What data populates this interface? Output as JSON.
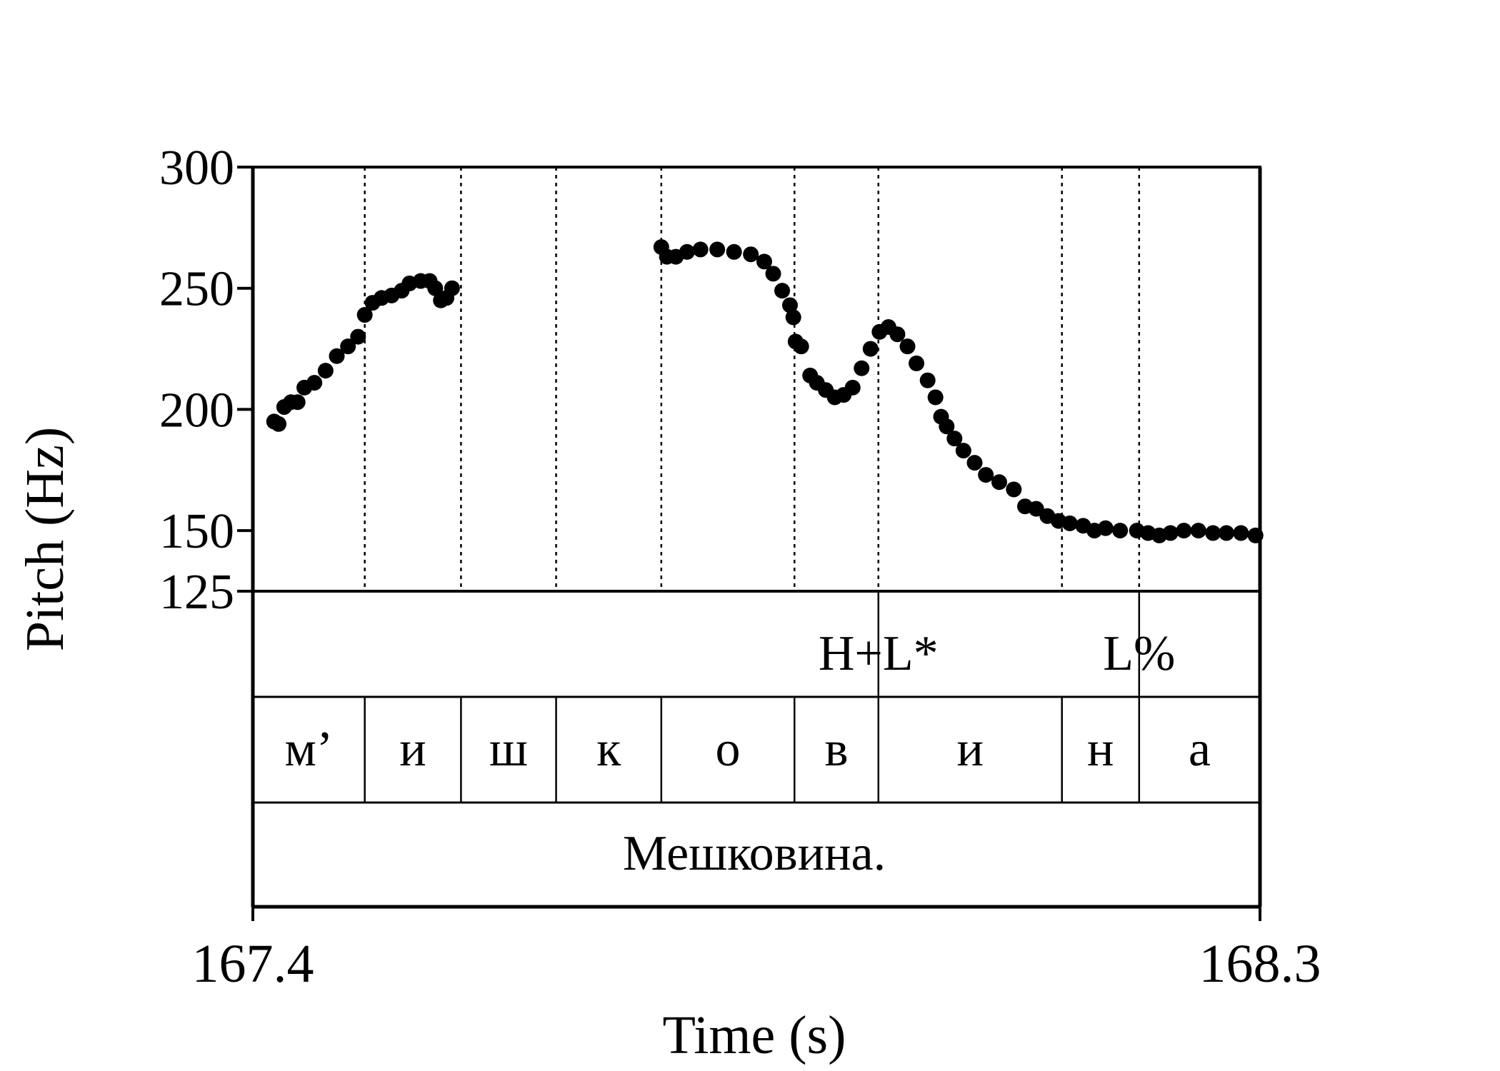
{
  "chart_data": {
    "type": "scatter",
    "title": "",
    "xlabel": "Time (s)",
    "ylabel": "Pitch (Hz)",
    "xlim": [
      167.4,
      168.3
    ],
    "ylim": [
      125,
      300
    ],
    "x_tick_labels": [
      "167.4",
      "168.3"
    ],
    "y_ticks": [
      125,
      150,
      200,
      250,
      300
    ],
    "y_tick_labels": [
      "125",
      "150",
      "200",
      "250",
      "300"
    ],
    "grid": false,
    "boundaries": [
      167.5,
      167.586,
      167.671,
      167.765,
      167.884,
      167.959,
      168.123,
      168.192
    ],
    "tones": [
      {
        "label": "H+L*",
        "t": 167.959
      },
      {
        "label": "L%",
        "t": 168.192
      }
    ],
    "segments": [
      {
        "label": "м’",
        "start": 167.4,
        "end": 167.5
      },
      {
        "label": "и",
        "start": 167.5,
        "end": 167.586
      },
      {
        "label": "ш",
        "start": 167.586,
        "end": 167.671
      },
      {
        "label": "к",
        "start": 167.671,
        "end": 167.765
      },
      {
        "label": "о",
        "start": 167.765,
        "end": 167.884
      },
      {
        "label": "в",
        "start": 167.884,
        "end": 167.959
      },
      {
        "label": "и",
        "start": 167.959,
        "end": 168.123
      },
      {
        "label": "н",
        "start": 168.123,
        "end": 168.192
      },
      {
        "label": "а",
        "start": 168.192,
        "end": 168.3
      }
    ],
    "word": "Мешковина.",
    "series": [
      {
        "points": [
          [
            167.419,
            195
          ],
          [
            167.423,
            194
          ],
          [
            167.428,
            201
          ],
          [
            167.434,
            203
          ],
          [
            167.44,
            203
          ],
          [
            167.446,
            209
          ],
          [
            167.455,
            211
          ],
          [
            167.465,
            216
          ],
          [
            167.475,
            222
          ],
          [
            167.485,
            226
          ],
          [
            167.494,
            230
          ],
          [
            167.5,
            239
          ],
          [
            167.507,
            244
          ],
          [
            167.515,
            246
          ],
          [
            167.524,
            247
          ],
          [
            167.533,
            249
          ],
          [
            167.54,
            252
          ],
          [
            167.55,
            253
          ],
          [
            167.558,
            253
          ],
          [
            167.563,
            250
          ],
          [
            167.568,
            245
          ],
          [
            167.573,
            246
          ],
          [
            167.578,
            250
          ],
          [
            167.765,
            267
          ],
          [
            167.77,
            263
          ],
          [
            167.778,
            263
          ],
          [
            167.788,
            265
          ],
          [
            167.8,
            266
          ],
          [
            167.815,
            266
          ],
          [
            167.83,
            265
          ],
          [
            167.845,
            264
          ],
          [
            167.857,
            261
          ],
          [
            167.865,
            256
          ],
          [
            167.873,
            249
          ],
          [
            167.88,
            243
          ],
          [
            167.883,
            238
          ],
          [
            167.885,
            228
          ],
          [
            167.89,
            226
          ],
          [
            167.898,
            214
          ],
          [
            167.904,
            211
          ],
          [
            167.912,
            208
          ],
          [
            167.92,
            205
          ],
          [
            167.928,
            206
          ],
          [
            167.936,
            209
          ],
          [
            167.944,
            217
          ],
          [
            167.952,
            225
          ],
          [
            167.96,
            232
          ],
          [
            167.968,
            234
          ],
          [
            167.976,
            231
          ],
          [
            167.985,
            226
          ],
          [
            167.993,
            219
          ],
          [
            168.003,
            212
          ],
          [
            168.01,
            205
          ],
          [
            168.015,
            197
          ],
          [
            168.02,
            193
          ],
          [
            168.027,
            188
          ],
          [
            168.035,
            183
          ],
          [
            168.045,
            178
          ],
          [
            168.055,
            173
          ],
          [
            168.067,
            170
          ],
          [
            168.08,
            167
          ],
          [
            168.09,
            160
          ],
          [
            168.1,
            159
          ],
          [
            168.11,
            156
          ],
          [
            168.12,
            154
          ],
          [
            168.13,
            153
          ],
          [
            168.142,
            152
          ],
          [
            168.152,
            150
          ],
          [
            168.162,
            151
          ],
          [
            168.175,
            150
          ],
          [
            168.19,
            150
          ],
          [
            168.2,
            149
          ],
          [
            168.21,
            148
          ],
          [
            168.22,
            149
          ],
          [
            168.232,
            150
          ],
          [
            168.245,
            150
          ],
          [
            168.258,
            149
          ],
          [
            168.27,
            149
          ],
          [
            168.283,
            149
          ],
          [
            168.296,
            148
          ]
        ]
      }
    ]
  }
}
